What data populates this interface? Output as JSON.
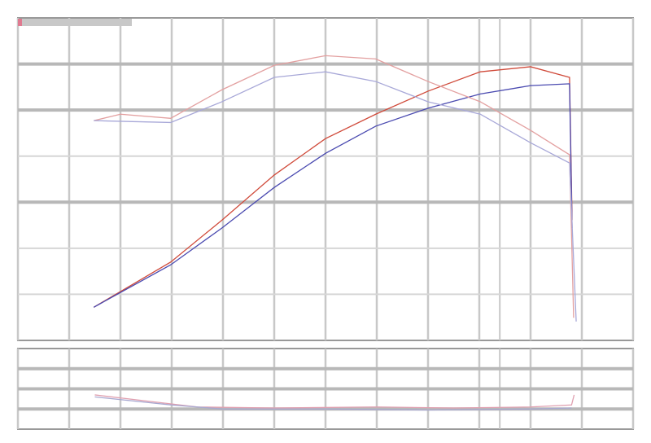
{
  "chart_data": [
    {
      "type": "line",
      "title": "",
      "xlabel": "",
      "ylabel": "",
      "xlim": [
        0,
        12
      ],
      "ylim": [
        0,
        7
      ],
      "grid": true,
      "legend": "top-left",
      "series": [
        {
          "color": "#d04a3a",
          "points": [
            [
              1.48,
              0.72
            ],
            [
              2.98,
              1.7
            ],
            [
              3.98,
              2.61
            ],
            [
              5.0,
              3.59
            ],
            [
              6.0,
              4.38
            ],
            [
              6.98,
              4.91
            ],
            [
              8.0,
              5.41
            ],
            [
              9.02,
              5.83
            ],
            [
              10.0,
              5.94
            ],
            [
              10.76,
              5.71
            ],
            [
              10.81,
              2.61
            ]
          ]
        },
        {
          "color": "#4a4ab0",
          "points": [
            [
              1.48,
              0.72
            ],
            [
              2.98,
              1.64
            ],
            [
              3.98,
              2.44
            ],
            [
              5.0,
              3.32
            ],
            [
              6.0,
              4.06
            ],
            [
              6.98,
              4.65
            ],
            [
              8.0,
              5.04
            ],
            [
              9.02,
              5.35
            ],
            [
              10.0,
              5.53
            ],
            [
              10.76,
              5.57
            ],
            [
              10.81,
              2.44
            ]
          ]
        },
        {
          "color": "#e3a0a0",
          "points": [
            [
              1.48,
              4.77
            ],
            [
              2.0,
              4.91
            ],
            [
              2.98,
              4.82
            ],
            [
              3.98,
              5.44
            ],
            [
              5.0,
              5.97
            ],
            [
              6.0,
              6.18
            ],
            [
              6.98,
              6.11
            ],
            [
              8.0,
              5.62
            ],
            [
              9.02,
              5.18
            ],
            [
              10.0,
              4.56
            ],
            [
              10.76,
              4.03
            ],
            [
              10.84,
              0.49
            ]
          ]
        },
        {
          "color": "#a8a8d8",
          "points": [
            [
              1.48,
              4.77
            ],
            [
              2.98,
              4.73
            ],
            [
              3.98,
              5.18
            ],
            [
              5.0,
              5.71
            ],
            [
              6.0,
              5.83
            ],
            [
              6.98,
              5.62
            ],
            [
              8.0,
              5.18
            ],
            [
              9.02,
              4.91
            ],
            [
              10.0,
              4.29
            ],
            [
              10.76,
              3.85
            ],
            [
              10.89,
              0.41
            ]
          ]
        }
      ]
    },
    {
      "type": "line",
      "xlim": [
        0,
        12
      ],
      "ylim": [
        0,
        4
      ],
      "grid": true,
      "series": [
        {
          "color": "#e0a0b0",
          "points": [
            [
              1.5,
              1.7
            ],
            [
              2.5,
              1.4
            ],
            [
              3.5,
              1.1
            ],
            [
              5,
              1.05
            ],
            [
              7,
              1.1
            ],
            [
              8.5,
              1.05
            ],
            [
              10,
              1.1
            ],
            [
              10.8,
              1.2
            ],
            [
              10.85,
              1.7
            ]
          ]
        },
        {
          "color": "#a8a8d0",
          "points": [
            [
              1.5,
              1.6
            ],
            [
              3,
              1.2
            ],
            [
              4,
              1.0
            ],
            [
              6,
              1.0
            ],
            [
              8,
              0.95
            ],
            [
              10,
              1.0
            ],
            [
              10.8,
              1.05
            ]
          ]
        }
      ]
    }
  ]
}
